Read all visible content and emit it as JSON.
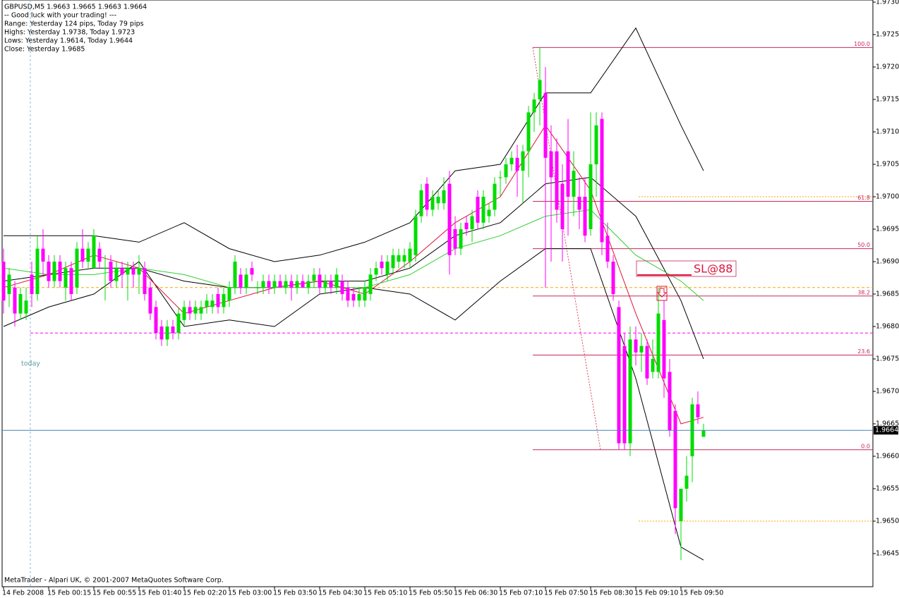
{
  "header_lines": [
    "GBPUSD,M5  1.9663 1.9665 1.9663 1.9664",
    "-- Good luck with your trading! ---",
    "Range: Yesterday 124 pips, Today 79 pips",
    "Highs: Yesterday 1.9738, Today 1.9723",
    "Lows:  Yesterday 1.9614, Today 1.9644",
    "Close: Yesterday 1.9685"
  ],
  "footer": "MetaTrader - Alpari UK, © 2001-2007 MetaQuotes Software Corp.",
  "chart_data": {
    "type": "candlestick",
    "categories": [
      "14 Feb 2008",
      null,
      null,
      null,
      null,
      null,
      null,
      null,
      "15 Feb 00:15",
      null,
      null,
      null,
      null,
      null,
      null,
      null,
      "15 Feb 00:55",
      null,
      null,
      null,
      null,
      null,
      null,
      null,
      "15 Feb 01:40",
      null,
      null,
      null,
      null,
      null,
      null,
      null,
      "15 Feb 02:20",
      null,
      null,
      null,
      null,
      null,
      null,
      null,
      "15 Feb 03:00",
      null,
      null,
      null,
      null,
      null,
      null,
      null,
      "15 Feb 03:50",
      null,
      null,
      null,
      null,
      null,
      null,
      null,
      "15 Feb 04:30",
      null,
      null,
      null,
      null,
      null,
      null,
      null,
      "15 Feb 05:10",
      null,
      null,
      null,
      null,
      null,
      null,
      null,
      "15 Feb 05:50",
      null,
      null,
      null,
      null,
      null,
      null,
      null,
      "15 Feb 06:30",
      null,
      null,
      null,
      null,
      null,
      null,
      null,
      "15 Feb 07:10",
      null,
      null,
      null,
      null,
      null,
      null,
      null,
      "15 Feb 07:50",
      null,
      null,
      null,
      null,
      null,
      null,
      null,
      "15 Feb 08:30",
      null,
      null,
      null,
      null,
      null,
      null,
      null,
      "15 Feb 09:10",
      null,
      null,
      null,
      null,
      null,
      null,
      null,
      "15 Feb 09:50",
      null,
      null,
      null,
      null
    ],
    "open": [
      1.969,
      1.9685,
      1.9686,
      1.9682,
      1.9682,
      1.9688,
      1.9685,
      1.9692,
      1.969,
      1.9687,
      1.969,
      1.9686,
      1.9689,
      1.9686,
      1.9692,
      1.969,
      1.9689,
      1.9692,
      1.9689,
      1.969,
      1.9687,
      1.9689,
      1.9688,
      1.9689,
      1.9688,
      1.9689,
      1.9686,
      1.9683,
      1.968,
      1.9678,
      1.968,
      1.9679,
      1.9681,
      1.9683,
      1.9682,
      1.9682,
      1.9683,
      1.9683,
      1.9685,
      1.9683,
      1.9684,
      1.9686,
      1.9688,
      1.9686,
      1.9689,
      1.9686,
      1.9686,
      1.9687,
      1.9686,
      1.9687,
      1.9686,
      1.9687,
      1.9686,
      1.9687,
      1.9686,
      1.9687,
      1.9688,
      1.9686,
      1.9687,
      1.9686,
      1.9687,
      1.9686,
      1.9685,
      1.9684,
      1.9684,
      1.9685,
      1.9688,
      1.969,
      1.9688,
      1.9689,
      1.969,
      1.969,
      1.969,
      1.9691,
      1.9697,
      1.9702,
      1.9698,
      1.9699,
      1.9699,
      1.9702,
      1.9695,
      1.9692,
      1.9696,
      1.9695,
      1.97,
      1.9696,
      1.9697,
      1.9698,
      1.9703,
      1.9703,
      1.9705,
      1.9706,
      1.9704,
      1.9707,
      1.9713,
      1.9715,
      1.9716,
      1.9707,
      1.9707,
      1.9702,
      1.9707,
      1.97,
      1.97,
      1.97,
      1.9695,
      1.9705,
      1.9712,
      1.9694,
      1.969,
      1.9683,
      1.9677,
      1.9662,
      1.9678,
      1.9676,
      1.9677,
      1.9673,
      1.9673,
      1.9681,
      1.9673,
      1.9667,
      1.965,
      1.9655,
      1.966,
      1.9668,
      1.9663
    ],
    "high": [
      1.9692,
      1.9689,
      1.9687,
      1.9686,
      1.9686,
      1.969,
      1.9694,
      1.9695,
      1.9691,
      1.9691,
      1.9691,
      1.969,
      1.969,
      1.9693,
      1.9695,
      1.9693,
      1.9695,
      1.9693,
      1.9691,
      1.9691,
      1.969,
      1.969,
      1.969,
      1.969,
      1.9691,
      1.969,
      1.9687,
      1.9684,
      1.9681,
      1.9681,
      1.9681,
      1.9683,
      1.9684,
      1.9684,
      1.9684,
      1.9684,
      1.9685,
      1.9685,
      1.9686,
      1.9686,
      1.9687,
      1.9691,
      1.9689,
      1.9689,
      1.969,
      1.9687,
      1.9688,
      1.9688,
      1.9688,
      1.9688,
      1.9688,
      1.9688,
      1.9688,
      1.9688,
      1.9688,
      1.9689,
      1.9689,
      1.9688,
      1.9688,
      1.9689,
      1.9688,
      1.9687,
      1.9686,
      1.9686,
      1.9687,
      1.9689,
      1.969,
      1.9691,
      1.9691,
      1.9692,
      1.9692,
      1.9692,
      1.9693,
      1.9698,
      1.9702,
      1.9703,
      1.9701,
      1.9701,
      1.9703,
      1.9704,
      1.9697,
      1.9696,
      1.9697,
      1.9698,
      1.9701,
      1.9701,
      1.9699,
      1.9703,
      1.9704,
      1.9706,
      1.9707,
      1.9708,
      1.9708,
      1.9714,
      1.9716,
      1.9723,
      1.972,
      1.9711,
      1.9709,
      1.9705,
      1.9712,
      1.9707,
      1.9703,
      1.9703,
      1.9713,
      1.9713,
      1.9713,
      1.9696,
      1.9691,
      1.9684,
      1.9679,
      1.968,
      1.968,
      1.9679,
      1.9678,
      1.9678,
      1.9686,
      1.9684,
      1.9675,
      1.9668,
      1.9655,
      1.966,
      1.9669,
      1.967,
      1.9665
    ],
    "low": [
      1.9682,
      1.9683,
      1.968,
      1.9681,
      1.9681,
      1.9683,
      1.9684,
      1.9688,
      1.9686,
      1.9686,
      1.9686,
      1.9684,
      1.9684,
      1.9685,
      1.9689,
      1.9689,
      1.9689,
      1.9689,
      1.9684,
      1.9686,
      1.9686,
      1.9686,
      1.9684,
      1.9686,
      1.9685,
      1.9684,
      1.9681,
      1.9678,
      1.9677,
      1.9677,
      1.9678,
      1.9678,
      1.968,
      1.9681,
      1.9681,
      1.9681,
      1.9682,
      1.9682,
      1.9682,
      1.9682,
      1.9683,
      1.9685,
      1.9685,
      1.9685,
      1.9687,
      1.9685,
      1.9685,
      1.9685,
      1.9685,
      1.9686,
      1.9685,
      1.9684,
      1.9685,
      1.9686,
      1.9685,
      1.9686,
      1.9685,
      1.9685,
      1.9685,
      1.9685,
      1.9684,
      1.9683,
      1.9683,
      1.9683,
      1.9683,
      1.9684,
      1.9687,
      1.9688,
      1.9687,
      1.9688,
      1.9689,
      1.9689,
      1.9689,
      1.969,
      1.9696,
      1.9697,
      1.9697,
      1.9698,
      1.9698,
      1.9688,
      1.9691,
      1.9691,
      1.9694,
      1.9693,
      1.9695,
      1.9695,
      1.9696,
      1.9697,
      1.97,
      1.9702,
      1.9704,
      1.97,
      1.9699,
      1.9703,
      1.971,
      1.9711,
      1.9686,
      1.969,
      1.9696,
      1.969,
      1.9694,
      1.9697,
      1.9695,
      1.9693,
      1.9694,
      1.97,
      1.9691,
      1.9689,
      1.9684,
      1.9661,
      1.9661,
      1.966,
      1.9674,
      1.9673,
      1.9671,
      1.9672,
      1.9672,
      1.9669,
      1.9663,
      1.9648,
      1.9644,
      1.9653,
      1.9656,
      1.9665,
      1.9663
    ],
    "close": [
      1.9684,
      1.9688,
      1.9682,
      1.9685,
      1.9684,
      1.9685,
      1.9692,
      1.969,
      1.9687,
      1.969,
      1.9687,
      1.9689,
      1.9685,
      1.9692,
      1.969,
      1.9692,
      1.9694,
      1.969,
      1.9689,
      1.9687,
      1.9689,
      1.9688,
      1.9689,
      1.9688,
      1.9689,
      1.9685,
      1.9682,
      1.9679,
      1.9678,
      1.968,
      1.9679,
      1.9682,
      1.9683,
      1.9682,
      1.9683,
      1.9683,
      1.9684,
      1.9684,
      1.9683,
      1.9685,
      1.9686,
      1.969,
      1.9686,
      1.9688,
      1.9688,
      1.9686,
      1.9687,
      1.9686,
      1.9687,
      1.9686,
      1.9687,
      1.9686,
      1.9687,
      1.9686,
      1.9687,
      1.9688,
      1.9686,
      1.9687,
      1.9686,
      1.9688,
      1.9685,
      1.9684,
      1.9684,
      1.9685,
      1.9686,
      1.9688,
      1.9689,
      1.9689,
      1.969,
      1.9691,
      1.9691,
      1.9691,
      1.9692,
      1.9697,
      1.9701,
      1.9698,
      1.97,
      1.97,
      1.9701,
      1.9691,
      1.9692,
      1.9695,
      1.9695,
      1.9697,
      1.9696,
      1.97,
      1.9698,
      1.9702,
      1.9703,
      1.9705,
      1.9706,
      1.9704,
      1.9707,
      1.9713,
      1.9715,
      1.9718,
      1.9706,
      1.9703,
      1.9698,
      1.9695,
      1.97,
      1.9704,
      1.9698,
      1.9694,
      1.9705,
      1.9711,
      1.9693,
      1.969,
      1.9685,
      1.9662,
      1.9662,
      1.9678,
      1.9676,
      1.9677,
      1.9672,
      1.9675,
      1.9682,
      1.9672,
      1.9664,
      1.9652,
      1.9655,
      1.9657,
      1.9668,
      1.9666,
      1.9664
    ],
    "colors": {
      "up": "#00dd00",
      "down": "#ff00ff"
    },
    "ylim": [
      1.964,
      1.973
    ],
    "yticks": [
      1.9645,
      {
        "value": 1.965,
        "label": "1.9650"
      },
      1.9655,
      {
        "value": 1.966,
        "label": "1.9660"
      },
      1.9665,
      {
        "value": 1.967,
        "label": "1.9670"
      },
      1.9675,
      {
        "value": 1.968,
        "label": "1.9680"
      },
      1.9685,
      {
        "value": 1.969,
        "label": "1.9690"
      },
      1.9695,
      {
        "value": 1.97,
        "label": "1.9700"
      },
      1.9705,
      {
        "value": 1.971,
        "label": "1.9710"
      },
      1.9715,
      {
        "value": 1.972,
        "label": "1.9720"
      },
      1.9725,
      {
        "value": 1.973,
        "label": "1.9730"
      }
    ],
    "grid": false,
    "indicator_x": [
      0,
      8,
      16,
      24,
      32,
      40,
      48,
      56,
      64,
      72,
      80,
      88,
      96,
      104,
      112,
      120,
      124
    ],
    "indicators": [
      {
        "color": "#000000",
        "values": [
          1.9694,
          1.9694,
          1.9694,
          1.9693,
          1.9696,
          1.9692,
          1.969,
          1.9691,
          1.9693,
          1.9696,
          1.9704,
          1.9705,
          1.9716,
          1.9716,
          1.9726,
          1.9711,
          1.9704
        ]
      },
      {
        "color": "#000000",
        "values": [
          1.9687,
          1.9688,
          1.9689,
          1.9689,
          1.9687,
          1.9686,
          1.9686,
          1.9687,
          1.9687,
          1.9689,
          1.9694,
          1.9696,
          1.9702,
          1.9703,
          1.9697,
          1.9684,
          1.9675
        ]
      },
      {
        "color": "#000000",
        "values": [
          1.968,
          1.9683,
          1.9685,
          1.969,
          1.968,
          1.9681,
          1.968,
          1.9685,
          1.9686,
          1.9685,
          1.9681,
          1.9687,
          1.9692,
          1.9692,
          1.9672,
          1.9646,
          1.9644
        ]
      },
      {
        "color": "#dc143c",
        "values": [
          1.9686,
          1.9688,
          1.9691,
          1.9689,
          1.9682,
          1.9684,
          1.9686,
          1.9687,
          1.9685,
          1.969,
          1.9696,
          1.97,
          1.9711,
          1.9701,
          1.9682,
          1.9665,
          1.9666
        ]
      },
      {
        "color": "#32cd32",
        "values": [
          1.9689,
          1.9688,
          1.9688,
          1.9689,
          1.9688,
          1.9686,
          1.9686,
          1.9686,
          1.9686,
          1.9688,
          1.9692,
          1.9694,
          1.9697,
          1.9698,
          1.9691,
          1.9687,
          1.9684
        ]
      }
    ],
    "fibonacci": {
      "color": "#c8285a",
      "levels": [
        {
          "label": "100.0",
          "value": 1.9723
        },
        {
          "label": "61.8",
          "value": 1.96993
        },
        {
          "label": "50.0",
          "value": 1.9692
        },
        {
          "label": "38.2",
          "value": 1.96847
        },
        {
          "label": "23.6",
          "value": 1.96756
        },
        {
          "label": "0.0",
          "value": 1.9661
        }
      ]
    },
    "hlines": [
      {
        "value": 1.9686,
        "color": "#ffa500",
        "style": "dashed"
      },
      {
        "value": 1.9679,
        "color": "#ff00ff",
        "style": "dashed"
      },
      {
        "value": 1.97,
        "color": "#ffa500",
        "style": "dotted"
      },
      {
        "value": 1.965,
        "color": "#ffa500",
        "style": "dotted"
      }
    ],
    "last_price": 1.9664,
    "last_price_color": "#4682b4",
    "today_label": "today",
    "stop_loss_label": "SL@88"
  }
}
